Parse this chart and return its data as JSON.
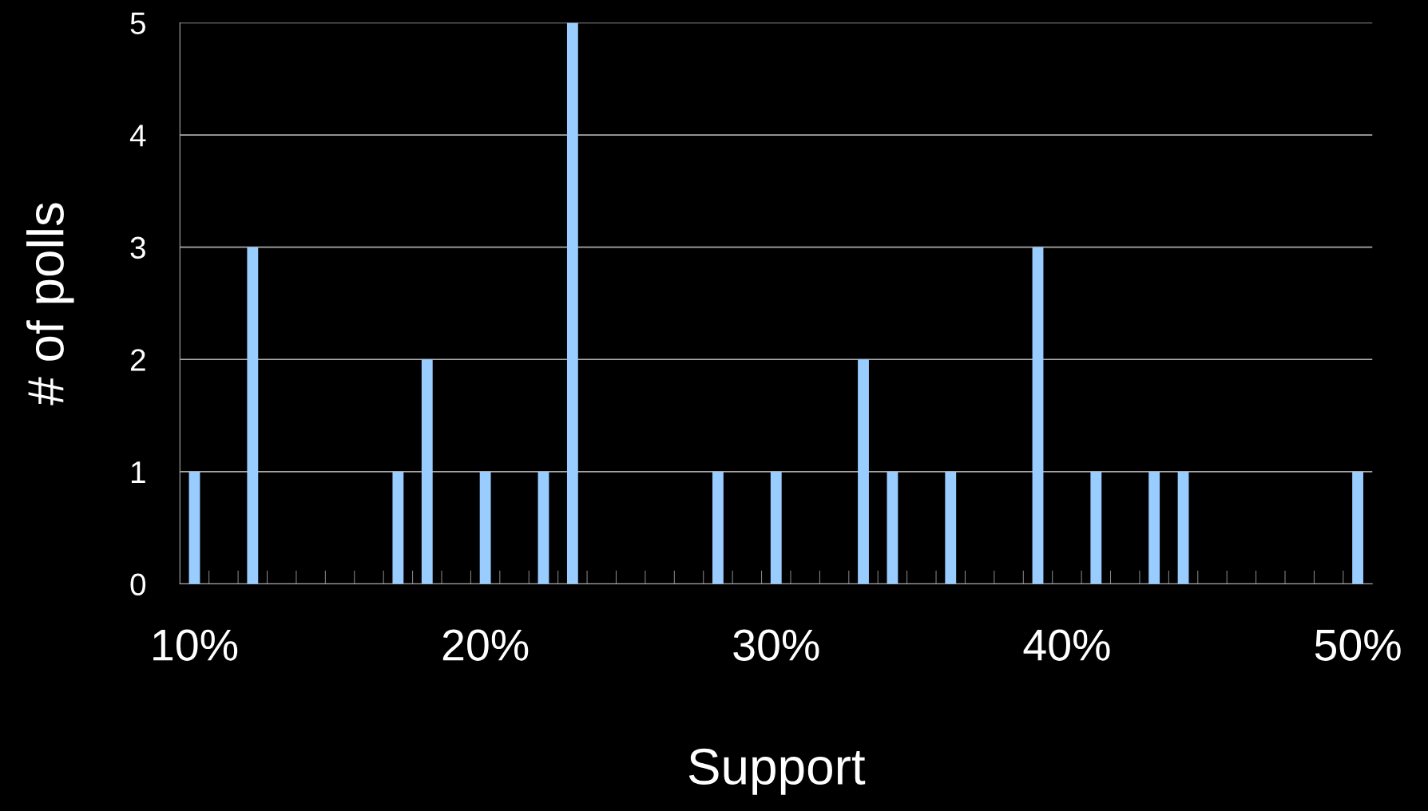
{
  "chart_data": {
    "type": "bar",
    "xlabel": "Support",
    "ylabel": "# of polls",
    "categories": [
      "10%",
      null,
      null,
      null,
      null,
      null,
      null,
      null,
      null,
      null,
      "20%",
      null,
      null,
      null,
      null,
      null,
      null,
      null,
      null,
      null,
      "30%",
      null,
      null,
      null,
      null,
      null,
      null,
      null,
      null,
      null,
      "40%",
      null,
      null,
      null,
      null,
      null,
      null,
      null,
      null,
      null,
      "50%"
    ],
    "values": [
      1,
      0,
      3,
      0,
      0,
      0,
      0,
      1,
      2,
      0,
      1,
      0,
      1,
      5,
      0,
      0,
      0,
      0,
      1,
      0,
      1,
      0,
      0,
      2,
      1,
      0,
      1,
      0,
      0,
      3,
      0,
      1,
      0,
      1,
      1,
      0,
      0,
      0,
      0,
      0,
      1
    ],
    "color": "#99ccff",
    "ylim": [
      0,
      5
    ],
    "yticks": [
      0,
      1,
      2,
      3,
      4,
      5
    ],
    "grid": "y",
    "legend": false
  }
}
